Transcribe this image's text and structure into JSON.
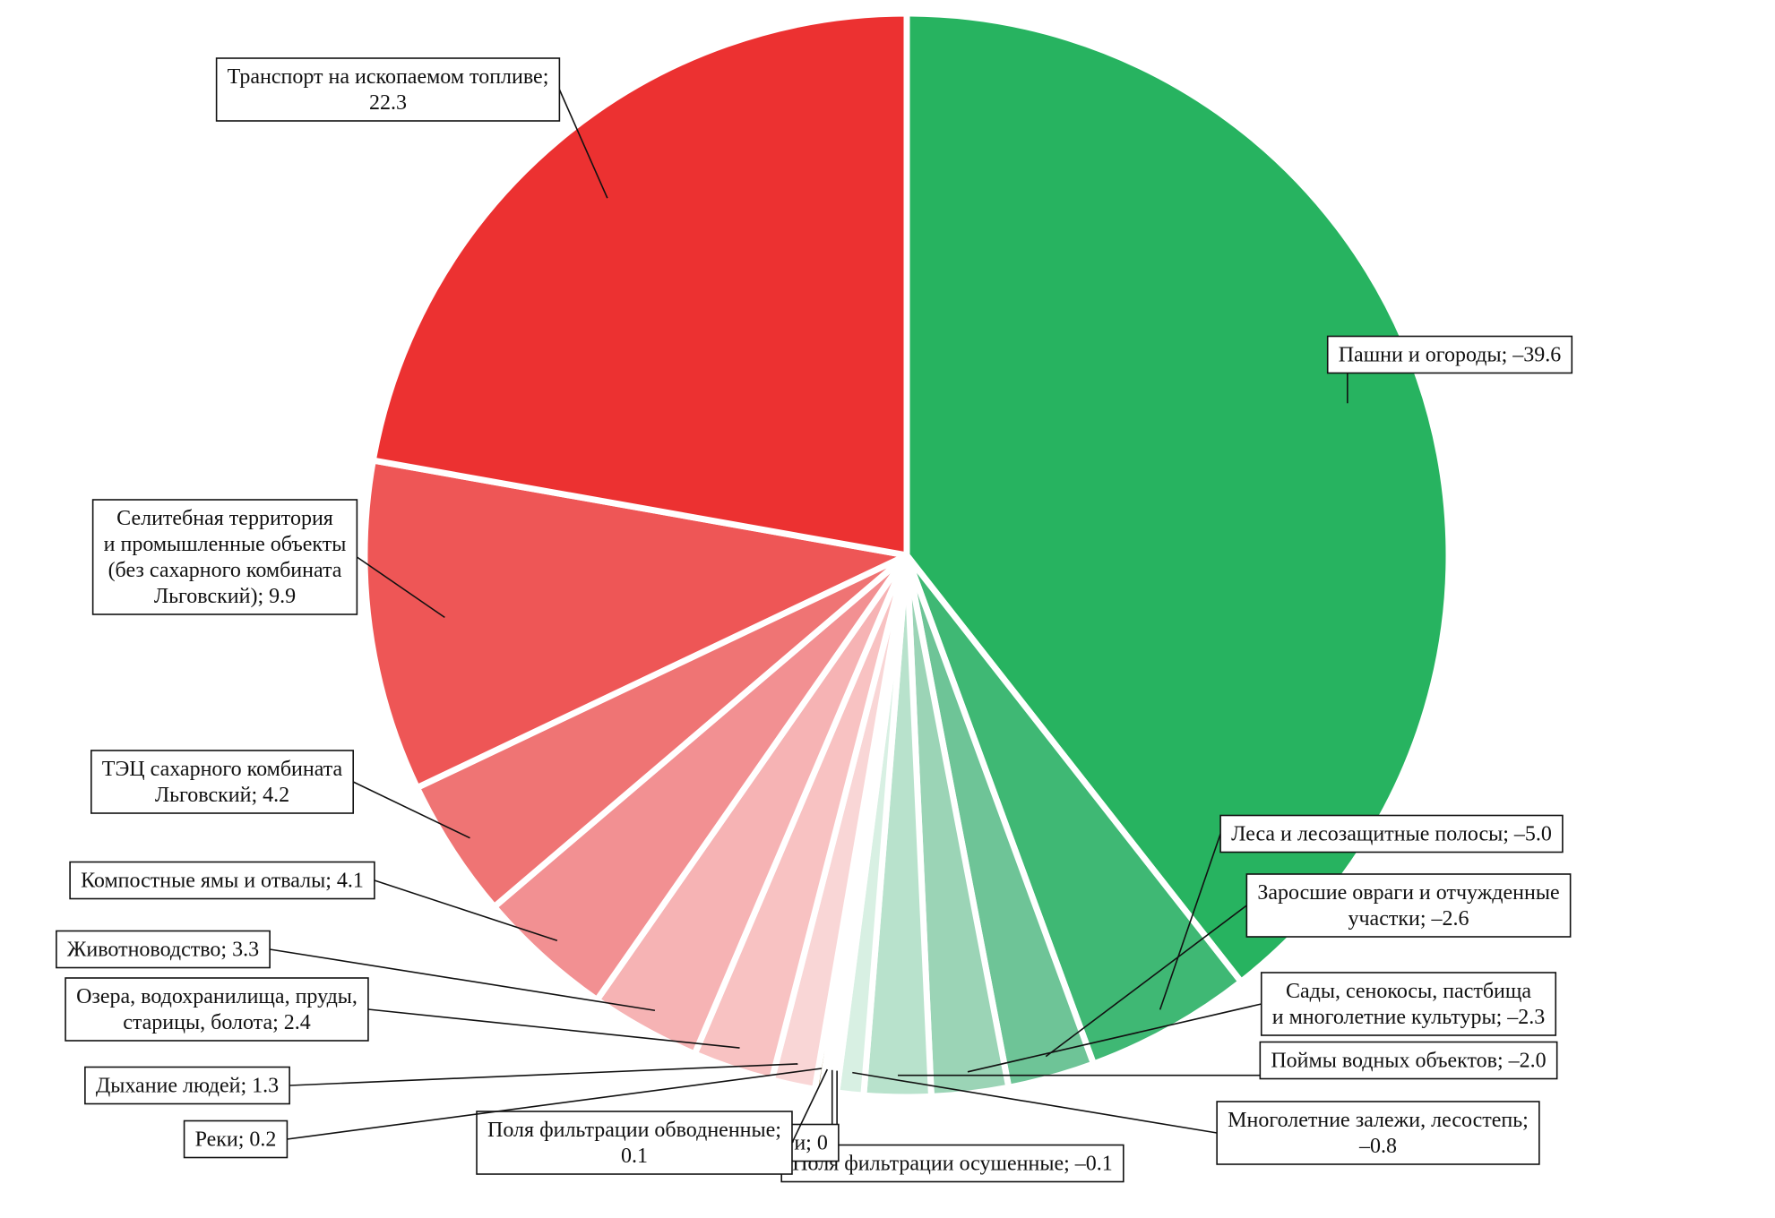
{
  "chart_data": {
    "type": "pie",
    "title": "",
    "start_angle_deg": 0,
    "series": [
      {
        "name": "",
        "slices": [
          {
            "label": "Пашни и огороды; –39.6",
            "lines": [
              "Пашни и огороды; –39.6"
            ],
            "value": -39.6,
            "color": "#27b360"
          },
          {
            "label": "Леса и лесозащитные полосы; –5.0",
            "lines": [
              "Леса и лесозащитные полосы; –5.0"
            ],
            "value": -5.0,
            "color": "#3fb874"
          },
          {
            "label": "Заросшие овраги и отчужденные участки; –2.6",
            "lines": [
              "Заросшие овраги и отчужденные",
              "участки; –2.6"
            ],
            "value": -2.6,
            "color": "#6ec497"
          },
          {
            "label": "Сады, сенокосы, пастбища и многолетние культуры; –2.3",
            "lines": [
              "Сады, сенокосы, пастбища",
              "и многолетние культуры; –2.3"
            ],
            "value": -2.3,
            "color": "#9bd4b6"
          },
          {
            "label": "Поймы водных объектов; –2.0",
            "lines": [
              "Поймы водных объектов; –2.0"
            ],
            "value": -2.0,
            "color": "#b8e2cc"
          },
          {
            "label": "Многолетние залежи, лесостепь; –0.8",
            "lines": [
              "Многолетние залежи, лесостепь;",
              "–0.8"
            ],
            "value": -0.8,
            "color": "#d8f0e3"
          },
          {
            "label": "Поля фильтрации осушенные; –0.1",
            "lines": [
              "Поля фильтрации осушенные; –0.1"
            ],
            "value": -0.1,
            "color": "#e6f5ec"
          },
          {
            "label": "Дороги; 0",
            "lines": [
              "Дороги; 0"
            ],
            "value": 0,
            "color": "#8a7a3a"
          },
          {
            "label": "Поля фильтрации обводненные; 0.1",
            "lines": [
              "Поля фильтрации обводненные;",
              "0.1"
            ],
            "value": 0.1,
            "color": "#8a6b2b"
          },
          {
            "label": "Реки; 0.2",
            "lines": [
              "Реки; 0.2"
            ],
            "value": 0.2,
            "color": "#8a6b2b"
          },
          {
            "label": "Дыхание людей; 1.3",
            "lines": [
              "Дыхание людей; 1.3"
            ],
            "value": 1.3,
            "color": "#f9d6d6"
          },
          {
            "label": "Озера, водохранилища, пруды, старицы, болота; 2.4",
            "lines": [
              "Озера, водохранилища, пруды,",
              "старицы, болота; 2.4"
            ],
            "value": 2.4,
            "color": "#f8c2c2"
          },
          {
            "label": "Животноводство; 3.3",
            "lines": [
              "Животноводство; 3.3"
            ],
            "value": 3.3,
            "color": "#f6b3b4"
          },
          {
            "label": "Компостные ямы и отвалы; 4.1",
            "lines": [
              "Компостные ямы и отвалы; 4.1"
            ],
            "value": 4.1,
            "color": "#f29092"
          },
          {
            "label": "ТЭЦ сахарного комбината Льговский; 4.2",
            "lines": [
              "ТЭЦ сахарного комбината",
              "Льговский; 4.2"
            ],
            "value": 4.2,
            "color": "#ef7474"
          },
          {
            "label": "Селитебная территория и промышленные объекты (без сахарного комбината Льговский); 9.9",
            "lines": [
              "Селитебная территория",
              "и промышленные объекты",
              "(без сахарного комбината",
              "Льговский); 9.9"
            ],
            "value": 9.9,
            "color": "#ee5656"
          },
          {
            "label": "Транспорт на ископаемом топливе; 22.3",
            "lines": [
              "Транспорт на ископаемом топливе;",
              "22.3"
            ],
            "value": 22.3,
            "color": "#ec3131"
          }
        ]
      }
    ]
  }
}
